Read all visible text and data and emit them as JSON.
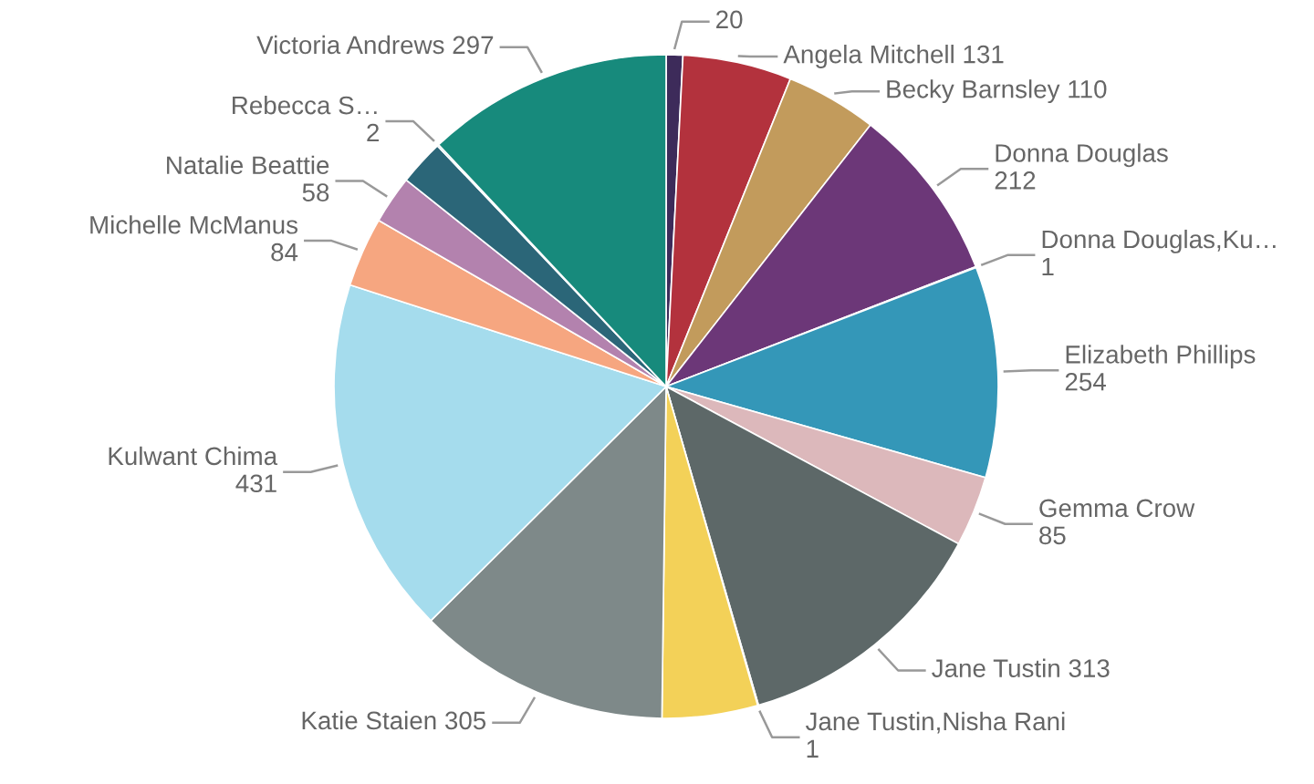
{
  "chart_data": {
    "type": "pie",
    "categories": [
      null,
      "Angela Mitchell",
      "Becky Barnsley",
      "Donna Douglas",
      "Donna Douglas,Ku…",
      "Elizabeth Phillips",
      "Gemma Crow",
      "Jane Tustin",
      "Jane Tustin,Nisha Rani",
      null,
      "Katie Staien",
      "Kulwant Chima",
      "Michelle McManus",
      "Natalie Beattie",
      null,
      "Rebecca S…",
      "Victoria Andrews"
    ],
    "values": [
      20,
      131,
      110,
      212,
      1,
      254,
      85,
      313,
      1,
      115,
      305,
      431,
      84,
      58,
      55,
      2,
      297
    ],
    "value_labels": [
      "20",
      "131",
      "110",
      "212",
      "1",
      "254",
      "85",
      "313",
      "1",
      null,
      "305",
      "431",
      "84",
      "58",
      null,
      "2",
      "297"
    ],
    "colors": [
      "#3d2b5a",
      "#b3323d",
      "#c29b5c",
      "#6c3778",
      "#e0a8b8",
      "#3497b8",
      "#dcb8bb",
      "#5d6868",
      "#8fb7c4",
      "#f3d158",
      "#7e8989",
      "#a5dced",
      "#f6a680",
      "#b382ae",
      "#2b6678",
      "#5f9ea8",
      "#178a7c"
    ],
    "legend": false
  }
}
